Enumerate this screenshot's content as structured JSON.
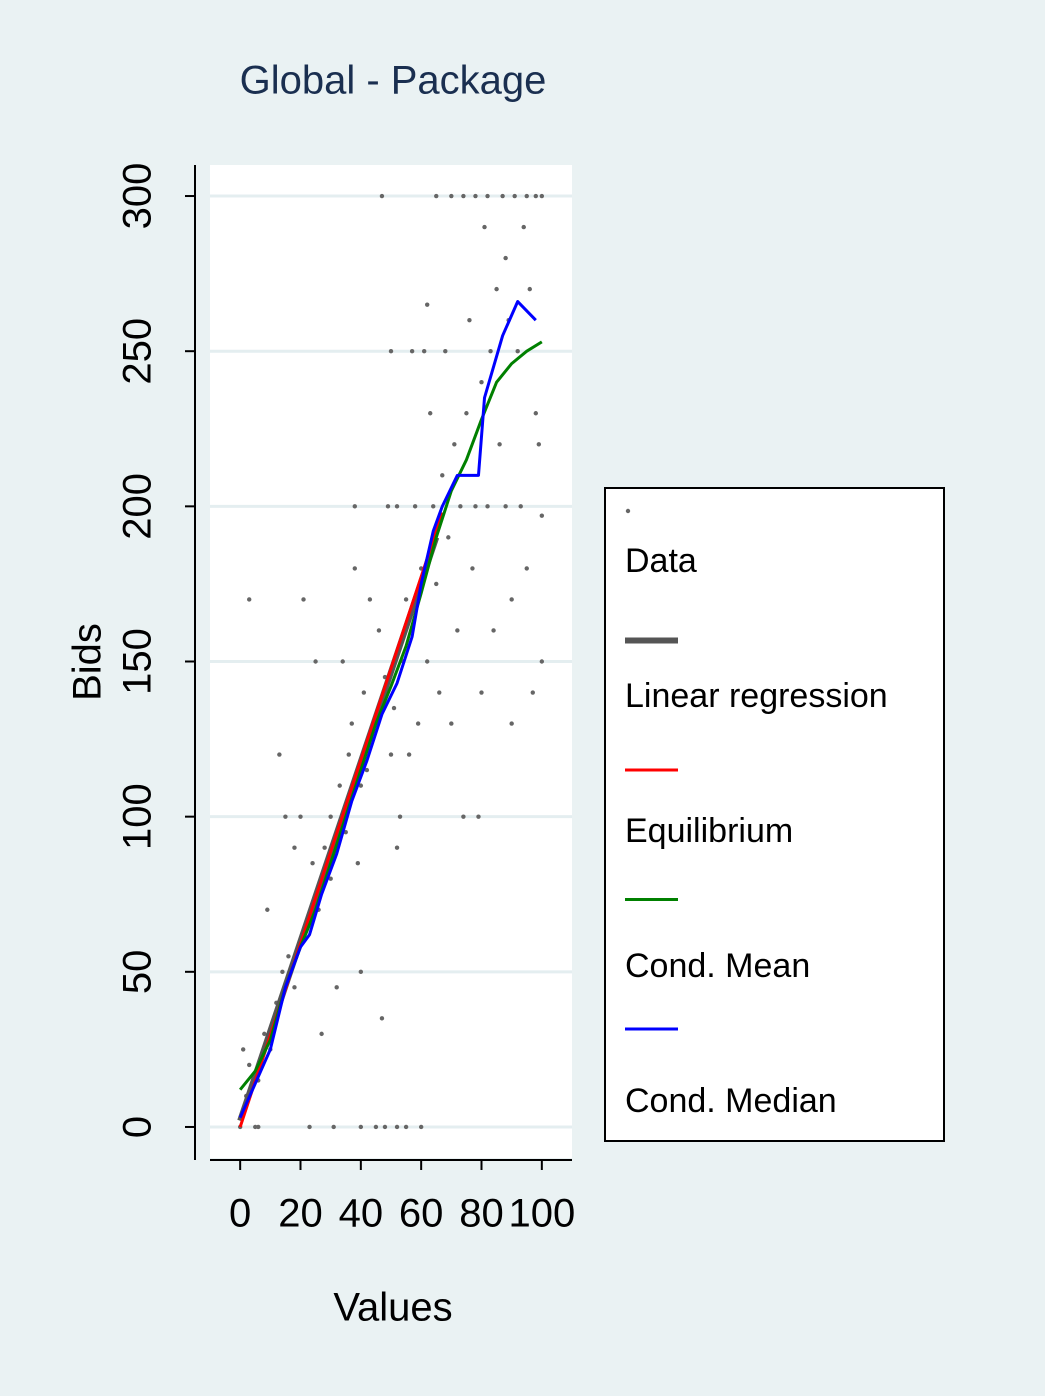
{
  "chart_data": {
    "type": "scatter",
    "title": "Global - Package",
    "x_label": "Values",
    "y_label": "Bids",
    "xlim": [
      -10,
      110
    ],
    "ylim": [
      -10,
      310
    ],
    "xticks": [
      0,
      20,
      40,
      60,
      80,
      100
    ],
    "yticks": [
      0,
      50,
      100,
      150,
      200,
      250,
      300
    ],
    "grid": true,
    "legend": "right",
    "series": [
      {
        "name": "Data",
        "color": "#666666",
        "mode": "markers",
        "x": [
          0,
          1,
          2,
          1,
          3,
          5,
          6,
          8,
          10,
          9,
          12,
          14,
          13,
          15,
          16,
          18,
          18,
          20,
          20,
          22,
          21,
          23,
          24,
          25,
          26,
          27,
          28,
          30,
          30,
          31,
          32,
          33,
          34,
          35,
          36,
          37,
          38,
          38,
          39,
          40,
          40,
          41,
          42,
          43,
          44,
          45,
          45,
          46,
          47,
          47,
          48,
          49,
          50,
          50,
          51,
          52,
          52,
          53,
          54,
          55,
          55,
          56,
          57,
          58,
          59,
          60,
          60,
          61,
          62,
          62,
          63,
          64,
          65,
          65,
          66,
          67,
          68,
          69,
          70,
          70,
          71,
          72,
          73,
          74,
          74,
          75,
          76,
          77,
          78,
          78,
          79,
          80,
          80,
          81,
          82,
          82,
          83,
          84,
          85,
          86,
          87,
          88,
          88,
          89,
          90,
          90,
          91,
          92,
          93,
          94,
          95,
          95,
          96,
          97,
          98,
          98,
          99,
          100,
          100,
          100,
          6,
          3,
          40,
          48,
          52
        ],
        "values": [
          0,
          5,
          10,
          25,
          20,
          0,
          15,
          30,
          25,
          70,
          40,
          50,
          120,
          100,
          55,
          45,
          90,
          60,
          100,
          65,
          170,
          0,
          85,
          150,
          70,
          30,
          90,
          80,
          100,
          0,
          45,
          110,
          150,
          95,
          120,
          130,
          200,
          180,
          85,
          50,
          110,
          140,
          115,
          170,
          125,
          0,
          130,
          160,
          35,
          300,
          145,
          200,
          250,
          120,
          135,
          90,
          200,
          100,
          150,
          170,
          0,
          120,
          250,
          200,
          130,
          0,
          180,
          250,
          265,
          150,
          230,
          200,
          175,
          300,
          140,
          210,
          250,
          190,
          300,
          130,
          220,
          160,
          200,
          300,
          100,
          230,
          260,
          180,
          300,
          200,
          100,
          240,
          140,
          290,
          300,
          200,
          250,
          160,
          270,
          220,
          300,
          200,
          280,
          260,
          170,
          130,
          300,
          250,
          200,
          290,
          300,
          180,
          270,
          140,
          300,
          230,
          220,
          300,
          150,
          197,
          0,
          170,
          0,
          0,
          0
        ]
      },
      {
        "name": "Linear regression",
        "color": "#555555",
        "mode": "lines",
        "width": 6,
        "x": [
          0,
          65
        ],
        "values": [
          2,
          190
        ]
      },
      {
        "name": "Equilibrium",
        "color": "#ff0000",
        "mode": "lines",
        "width": 3,
        "x": [
          0,
          67
        ],
        "values": [
          0,
          198
        ]
      },
      {
        "name": "Cond. Mean",
        "color": "#008000",
        "mode": "lines",
        "width": 3,
        "x": [
          0,
          5,
          10,
          15,
          20,
          25,
          30,
          35,
          40,
          45,
          50,
          55,
          60,
          65,
          70,
          75,
          80,
          85,
          90,
          95,
          100
        ],
        "values": [
          12,
          18,
          28,
          45,
          58,
          70,
          85,
          100,
          115,
          130,
          142,
          155,
          172,
          190,
          205,
          215,
          228,
          240,
          246,
          250,
          253
        ]
      },
      {
        "name": "Cond. Median",
        "color": "#0000ff",
        "mode": "lines",
        "width": 3,
        "x": [
          0,
          5,
          10,
          15,
          20,
          23,
          27,
          32,
          37,
          42,
          47,
          52,
          57,
          60,
          64,
          67,
          72,
          79,
          81,
          87,
          92,
          98
        ],
        "values": [
          3,
          14,
          25,
          45,
          58,
          62,
          75,
          88,
          105,
          118,
          133,
          143,
          158,
          175,
          192,
          200,
          210,
          210,
          235,
          255,
          266,
          260
        ]
      }
    ]
  }
}
